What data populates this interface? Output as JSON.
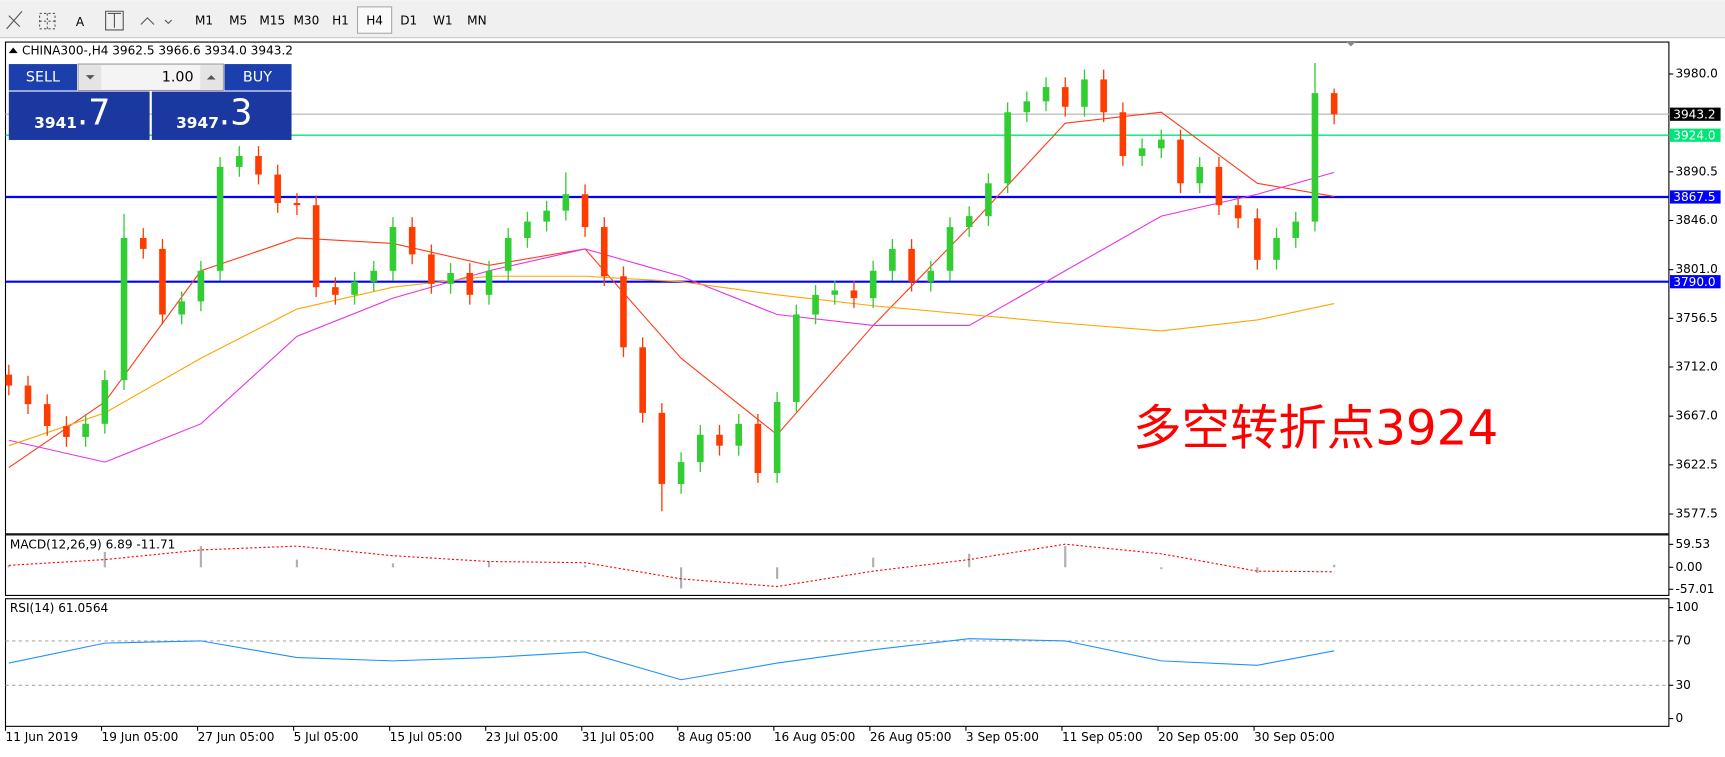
{
  "toolbar": {
    "timeframes": [
      "M1",
      "M5",
      "M15",
      "M30",
      "H1",
      "H4",
      "D1",
      "W1",
      "MN"
    ],
    "active": "H4"
  },
  "trade_panel": {
    "sell": "SELL",
    "buy": "BUY",
    "volume": "1.00",
    "bid": [
      "3941",
      ".7"
    ],
    "ask": [
      "3947",
      ".3"
    ]
  },
  "chart_data": [
    {
      "type": "candlestick",
      "symbol": "CHINA300-,H4",
      "ohlc_text": "3962.5 3966.6 3934.0 3943.2",
      "categories": [
        "11 Jun 2019",
        null,
        null,
        null,
        null,
        "19 Jun 05:00",
        null,
        null,
        null,
        null,
        "27 Jun 05:00",
        null,
        null,
        null,
        null,
        "5 Jul 05:00",
        null,
        null,
        null,
        null,
        "15 Jul 05:00",
        null,
        null,
        null,
        null,
        "23 Jul 05:00",
        null,
        null,
        null,
        null,
        "31 Jul 05:00",
        null,
        null,
        null,
        null,
        "8 Aug 05:00",
        null,
        null,
        null,
        null,
        "16 Aug 05:00",
        null,
        null,
        null,
        null,
        "26 Aug 05:00",
        null,
        null,
        null,
        null,
        "3 Sep 05:00",
        null,
        null,
        null,
        null,
        "11 Sep 05:00",
        null,
        null,
        null,
        null,
        "20 Sep 05:00",
        null,
        null,
        null,
        null,
        "30 Sep 05:00",
        null,
        null,
        null,
        null
      ],
      "open": [
        3705,
        3695,
        3678,
        3658,
        3648,
        3660,
        3700,
        3830,
        3820,
        3760,
        3772,
        3800,
        3895,
        3905,
        3888,
        3862,
        3860,
        3785,
        3778,
        3790,
        3800,
        3840,
        3815,
        3788,
        3798,
        3778,
        3800,
        3830,
        3845,
        3855,
        3870,
        3840,
        3795,
        3730,
        3670,
        3605,
        3625,
        3650,
        3640,
        3660,
        3615,
        3680,
        3760,
        3778,
        3782,
        3775,
        3800,
        3820,
        3790,
        3800,
        3840,
        3850,
        3880,
        3945,
        3955,
        3968,
        3950,
        3975,
        3945,
        3905,
        3912,
        3920,
        3880,
        3895,
        3860,
        3848,
        3810,
        3830,
        3845,
        3962.5
      ],
      "high": [
        3714,
        3704,
        3687,
        3667,
        3669,
        3709,
        3852,
        3839,
        3829,
        3781,
        3809,
        3904,
        3914,
        3914,
        3897,
        3871,
        3869,
        3794,
        3799,
        3809,
        3849,
        3849,
        3824,
        3807,
        3807,
        3809,
        3839,
        3854,
        3864,
        3890,
        3879,
        3849,
        3804,
        3739,
        3679,
        3634,
        3659,
        3659,
        3669,
        3669,
        3689,
        3769,
        3787,
        3791,
        3791,
        3809,
        3829,
        3829,
        3809,
        3849,
        3859,
        3889,
        3954,
        3964,
        3977,
        3977,
        3984,
        3984,
        3954,
        3921,
        3929,
        3929,
        3904,
        3904,
        3869,
        3857,
        3839,
        3854,
        3990,
        3966.6
      ],
      "low": [
        3686,
        3669,
        3649,
        3639,
        3639,
        3651,
        3691,
        3811,
        3751,
        3751,
        3763,
        3791,
        3886,
        3879,
        3853,
        3851,
        3776,
        3769,
        3769,
        3781,
        3791,
        3806,
        3779,
        3779,
        3769,
        3769,
        3791,
        3821,
        3836,
        3846,
        3831,
        3786,
        3721,
        3661,
        3580,
        3596,
        3616,
        3631,
        3631,
        3606,
        3606,
        3671,
        3751,
        3769,
        3766,
        3766,
        3791,
        3781,
        3781,
        3791,
        3831,
        3841,
        3871,
        3936,
        3946,
        3941,
        3941,
        3936,
        3896,
        3896,
        3903,
        3871,
        3871,
        3851,
        3839,
        3801,
        3801,
        3821,
        3836,
        3934
      ],
      "close": [
        3695,
        3678,
        3658,
        3648,
        3660,
        3700,
        3830,
        3820,
        3760,
        3772,
        3800,
        3895,
        3905,
        3888,
        3862,
        3860,
        3785,
        3778,
        3790,
        3800,
        3840,
        3815,
        3788,
        3798,
        3778,
        3800,
        3830,
        3845,
        3855,
        3870,
        3840,
        3795,
        3730,
        3670,
        3605,
        3625,
        3650,
        3640,
        3660,
        3615,
        3680,
        3760,
        3778,
        3782,
        3775,
        3800,
        3820,
        3790,
        3800,
        3840,
        3850,
        3880,
        3945,
        3955,
        3968,
        3950,
        3975,
        3945,
        3905,
        3912,
        3920,
        3880,
        3895,
        3860,
        3848,
        3810,
        3830,
        3845,
        3962.5,
        3943.2
      ],
      "up_color": "#32cd32",
      "down_color": "#ff3c00",
      "ylim": [
        3559.4,
        4009.2
      ],
      "yticks": [
        {
          "value": 3980,
          "label": "3980.0"
        },
        3890.5,
        {
          "value": 3846,
          "label": "3846.0"
        },
        {
          "value": 3801,
          "label": "3801.0"
        },
        3756.5,
        {
          "value": 3712,
          "label": "3712.0"
        },
        {
          "value": 3667,
          "label": "3667.0"
        },
        3622.5,
        3577.5
      ],
      "ma_x": [
        0,
        5,
        10,
        15,
        20,
        25,
        30,
        35,
        40,
        45,
        50,
        55,
        60,
        65,
        69
      ],
      "lines": [
        {
          "color": "#ff3c1a",
          "values": [
            3620,
            3680,
            3800,
            3830,
            3825,
            3805,
            3820,
            3720,
            3650,
            3750,
            3840,
            3935,
            3945,
            3880,
            3868
          ]
        },
        {
          "color": "#e633e6",
          "values": [
            3645,
            3625,
            3660,
            3740,
            3775,
            3800,
            3820,
            3795,
            3760,
            3750,
            3750,
            3800,
            3850,
            3870,
            3890
          ]
        },
        {
          "color": "#ffa500",
          "values": [
            3640,
            3670,
            3720,
            3765,
            3785,
            3795,
            3795,
            3790,
            3778,
            3768,
            3760,
            3752,
            3745,
            3755,
            3770
          ]
        }
      ],
      "levels": [
        {
          "value": 3943.2,
          "color": "#c0c0c0",
          "label_bg": "#000000"
        },
        {
          "value": {
            "value": 3924,
            "label": "3924.0"
          },
          "color": "#00e676",
          "label_bg": "#00e676"
        },
        {
          "value": 3867.5,
          "color": "#0000ff",
          "label_bg": "#0000ff"
        },
        {
          "value": {
            "value": 3790,
            "label": "3790.0"
          },
          "color": "#0000ff",
          "label_bg": "#0000ff"
        }
      ],
      "annotation": {
        "text": "多空转折点3924",
        "color": "#ff0000"
      }
    },
    {
      "type": "macd",
      "title": "MACD(12,26,9) 6.89 -11.71",
      "x": [
        0,
        5,
        10,
        15,
        20,
        25,
        30,
        35,
        40,
        45,
        50,
        55,
        60,
        65,
        69
      ],
      "histogram": [
        5,
        40,
        55,
        20,
        10,
        15,
        5,
        -55,
        -30,
        25,
        35,
        55,
        -5,
        -15,
        6.89
      ],
      "signal": [
        5,
        20,
        45,
        55,
        30,
        15,
        12,
        -30,
        -50,
        -10,
        20,
        60,
        35,
        -10,
        -11.71
      ],
      "hist_color": "#b0b0b0",
      "signal_color": "#ff0000",
      "ylim": [
        -73,
        84
      ],
      "yticks": [
        59.53,
        {
          "value": 0,
          "label": "0.00"
        },
        -57.01
      ]
    },
    {
      "type": "line",
      "title": "RSI(14) 61.0564",
      "x": [
        0,
        5,
        10,
        15,
        20,
        25,
        30,
        35,
        40,
        45,
        50,
        55,
        60,
        65,
        69
      ],
      "values": [
        50,
        68,
        70,
        55,
        52,
        55,
        60,
        35,
        50,
        62,
        72,
        70,
        52,
        48,
        61.0564
      ],
      "color": "#1e90ff",
      "ylim": [
        -7,
        108
      ],
      "yticks": [
        100,
        70,
        30,
        0
      ],
      "dashed": [
        70,
        30
      ]
    }
  ]
}
